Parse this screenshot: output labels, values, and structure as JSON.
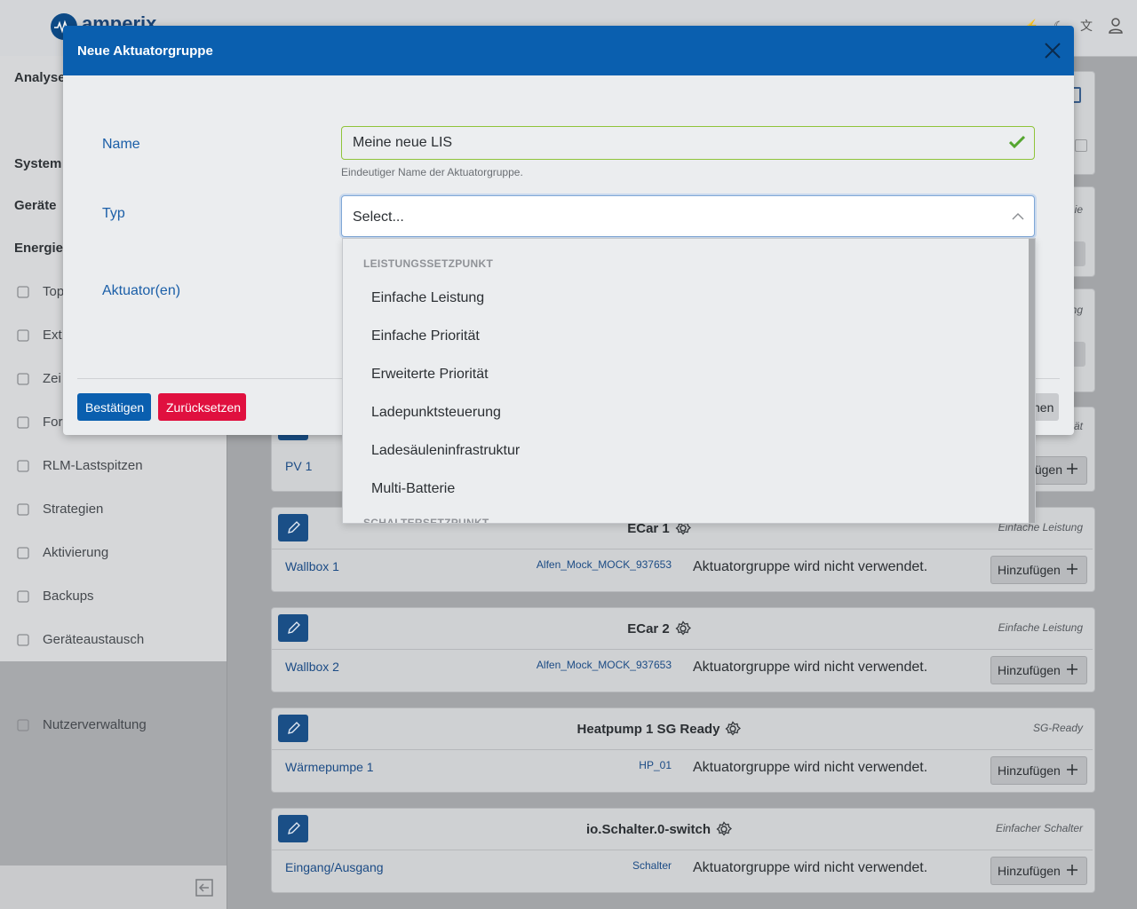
{
  "topbar": {
    "logo": "amperix"
  },
  "sidebar": {
    "sections": [
      "Analyse",
      "System",
      "Geräte",
      "Energie"
    ],
    "items": [
      "Top",
      "Ext.",
      "Zei",
      "For",
      "RLM-Lastspitzen",
      "Strategien",
      "Aktivierung",
      "Backups",
      "Geräteaustausch"
    ],
    "footer_item": "Nutzerverwaltung"
  },
  "main": {
    "fragments": [
      "ie",
      "ng",
      "ät"
    ],
    "partial_card": {
      "device": "PV 1",
      "button": "fügen"
    },
    "cards": [
      {
        "title": "ECar 1",
        "type": "Einfache Leistung",
        "device": "Wallbox 1",
        "id": "Alfen_Mock_MOCK_937653",
        "status": "Aktuatorgruppe wird nicht verwendet.",
        "button": "Hinzufügen"
      },
      {
        "title": "ECar 2",
        "type": "Einfache Leistung",
        "device": "Wallbox 2",
        "id": "Alfen_Mock_MOCK_937653",
        "status": "Aktuatorgruppe wird nicht verwendet.",
        "button": "Hinzufügen"
      },
      {
        "title": "Heatpump 1 SG Ready",
        "type": "SG-Ready",
        "device": "Wärmepumpe 1",
        "id": "HP_01",
        "status": "Aktuatorgruppe wird nicht verwendet.",
        "button": "Hinzufügen"
      },
      {
        "title": "io.Schalter.0-switch",
        "type": "Einfacher Schalter",
        "device": "Eingang/Ausgang",
        "id": "Schalter",
        "status": "Aktuatorgruppe wird nicht verwendet.",
        "button": "Hinzufügen"
      }
    ]
  },
  "modal": {
    "title": "Neue Aktuatorgruppe",
    "name_label": "Name",
    "name_value": "Meine neue LIS",
    "name_help": "Eindeutiger Name der Aktuatorgruppe.",
    "type_label": "Typ",
    "type_placeholder": "Select...",
    "actuators_label": "Aktuator(en)",
    "confirm": "Bestätigen",
    "reset": "Zurücksetzen",
    "close_fragment": "nen",
    "dropdown": {
      "group": "LEISTUNGSSETZPUNKT",
      "options": [
        "Einfache Leistung",
        "Einfache Priorität",
        "Erweiterte Priorität",
        "Ladepunktsteuerung",
        "Ladesäuleninfrastruktur",
        "Multi-Batterie"
      ],
      "next_group": "SCHALTERSETZPUNKT"
    }
  }
}
